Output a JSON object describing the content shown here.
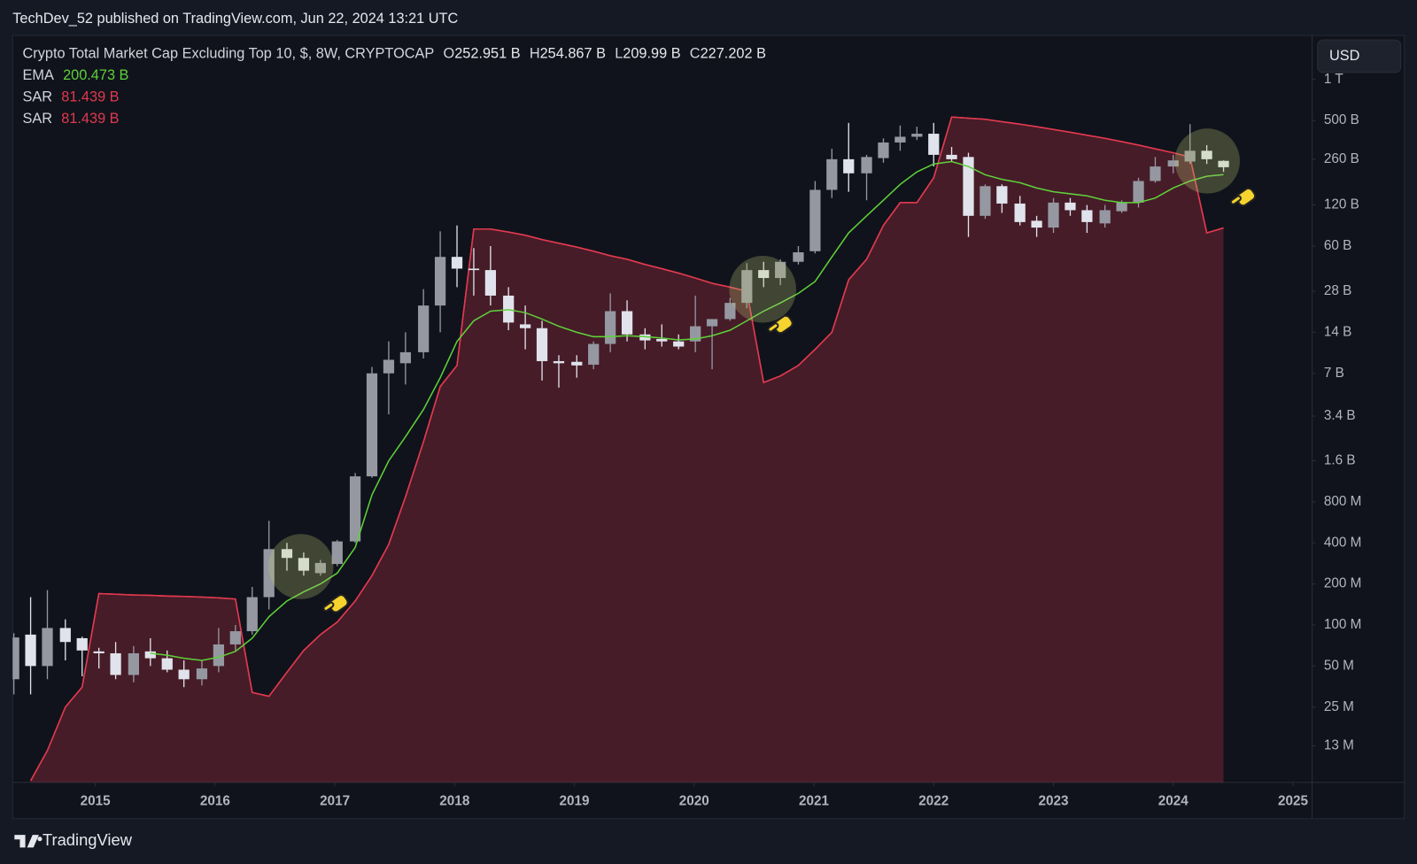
{
  "page": {
    "publisher": "TechDev_52 published on TradingView.com, Jun 22, 2024 13:21 UTC",
    "brand": "TradingView"
  },
  "chart_data": {
    "type": "candlestick",
    "title": "Crypto Total Market Cap Excluding Top 10, $, 8W, CRYPTOCAP",
    "ohlc_labels": [
      {
        "key": "O",
        "label": "252.951 B"
      },
      {
        "key": "H",
        "label": "254.867 B"
      },
      {
        "key": "L",
        "label": "209.99 B"
      },
      {
        "key": "C",
        "label": "227.202 B"
      }
    ],
    "currency": "USD",
    "yscale": "log",
    "xlim": [
      2014.31,
      2025.16
    ],
    "xticks": [
      2015,
      2016,
      2017,
      2018,
      2019,
      2020,
      2021,
      2022,
      2023,
      2024,
      2025
    ],
    "ylim": [
      7000000.0,
      2070000000000.0
    ],
    "yticks": [
      {
        "value": 1000000000000.0,
        "label": "1 T"
      },
      {
        "value": 500000000000.0,
        "label": "500 B"
      },
      {
        "value": 260000000000.0,
        "label": "260 B"
      },
      {
        "value": 120000000000.0,
        "label": "120 B"
      },
      {
        "value": 60000000000.0,
        "label": "60 B"
      },
      {
        "value": 28000000000.0,
        "label": "28 B"
      },
      {
        "value": 14000000000.0,
        "label": "14 B"
      },
      {
        "value": 7000000000.0,
        "label": "7 B"
      },
      {
        "value": 3400000000.0,
        "label": "3.4 B"
      },
      {
        "value": 1600000000.0,
        "label": "1.6 B"
      },
      {
        "value": 800000000.0,
        "label": "800 M"
      },
      {
        "value": 400000000.0,
        "label": "400 M"
      },
      {
        "value": 200000000.0,
        "label": "200 M"
      },
      {
        "value": 100000000.0,
        "label": "100 M"
      },
      {
        "value": 50000000.0,
        "label": "50 M"
      },
      {
        "value": 25000000.0,
        "label": "25 M"
      },
      {
        "value": 13000000.0,
        "label": "13 M"
      }
    ],
    "x": [
      2014.32,
      2014.46,
      2014.6,
      2014.75,
      2014.89,
      2015.03,
      2015.17,
      2015.32,
      2015.46,
      2015.6,
      2015.74,
      2015.89,
      2016.03,
      2016.17,
      2016.31,
      2016.45,
      2016.6,
      2016.74,
      2016.88,
      2017.02,
      2017.17,
      2017.31,
      2017.45,
      2017.59,
      2017.74,
      2017.88,
      2018.02,
      2018.16,
      2018.3,
      2018.45,
      2018.59,
      2018.73,
      2018.87,
      2019.02,
      2019.16,
      2019.3,
      2019.44,
      2019.59,
      2019.73,
      2019.87,
      2020.01,
      2020.15,
      2020.3,
      2020.44,
      2020.58,
      2020.72,
      2020.87,
      2021.01,
      2021.15,
      2021.29,
      2021.44,
      2021.58,
      2021.72,
      2021.86,
      2022.0,
      2022.15,
      2022.29,
      2022.43,
      2022.57,
      2022.72,
      2022.86,
      2023.0,
      2023.14,
      2023.28,
      2023.43,
      2023.57,
      2023.71,
      2023.85,
      2024.0,
      2024.14,
      2024.28,
      2024.42
    ],
    "candles": {
      "up_color": "#9598a1",
      "down_color": "#e0e3eb",
      "open": [
        40000000.0,
        85000000.0,
        50000000.0,
        95000000.0,
        80000000.0,
        64000000.0,
        62000000.0,
        43000000.0,
        64000000.0,
        57000000.0,
        47000000.0,
        40000000.0,
        50000000.0,
        72000000.0,
        90000000.0,
        160000000.0,
        360000000.0,
        310000000.0,
        240000000.0,
        280000000.0,
        410000000.0,
        1230000000.0,
        7000000000.0,
        8300000000.0,
        10000000000.0,
        22000000000.0,
        50000000000.0,
        41000000000.0,
        40000000000.0,
        26000000000.0,
        16000000000.0,
        15000000000.0,
        8600000000.0,
        8500000000.0,
        8100000000.0,
        11500000000.0,
        20000000000.0,
        13500000000.0,
        12500000000.0,
        12000000000.0,
        12000000000.0,
        15500000000.0,
        17500000000.0,
        23000000000.0,
        40000000000.0,
        35000000000.0,
        46000000000.0,
        55000000000.0,
        155000000000.0,
        260000000000.0,
        205000000000.0,
        265000000000.0,
        345000000000.0,
        380000000000.0,
        400000000000.0,
        280000000000.0,
        270000000000.0,
        100000000000.0,
        165000000000.0,
        123000000000.0,
        92000000000.0,
        82000000000.0,
        125000000000.0,
        110000000000.0,
        88000000000.0,
        108000000000.0,
        125000000000.0,
        180000000000.0,
        230000000000.0,
        250000000000.0,
        300000000000.0,
        252951000000.0
      ],
      "high": [
        87000000.0,
        160000000.0,
        180000000.0,
        110000000.0,
        82000000.0,
        68000000.0,
        75000000.0,
        70000000.0,
        80000000.0,
        65000000.0,
        55000000.0,
        55000000.0,
        95000000.0,
        100000000.0,
        190000000.0,
        580000000.0,
        400000000.0,
        340000000.0,
        300000000.0,
        420000000.0,
        1300000000.0,
        7800000000.0,
        12000000000.0,
        14000000000.0,
        29000000000.0,
        77000000000.0,
        85000000000.0,
        58000000000.0,
        60000000000.0,
        30000000000.0,
        22000000000.0,
        17000000000.0,
        9500000000.0,
        9500000000.0,
        12000000000.0,
        27000000000.0,
        24000000000.0,
        15000000000.0,
        16000000000.0,
        13500000000.0,
        26000000000.0,
        17500000000.0,
        25000000000.0,
        45000000000.0,
        46000000000.0,
        48000000000.0,
        60000000000.0,
        180000000000.0,
        310000000000.0,
        480000000000.0,
        280000000000.0,
        370000000000.0,
        460000000000.0,
        450000000000.0,
        480000000000.0,
        320000000000.0,
        290000000000.0,
        170000000000.0,
        170000000000.0,
        140000000000.0,
        100000000000.0,
        135000000000.0,
        135000000000.0,
        120000000000.0,
        120000000000.0,
        130000000000.0,
        190000000000.0,
        270000000000.0,
        280000000000.0,
        470000000000.0,
        330000000000.0,
        254867000000.0
      ],
      "low": [
        31000000.0,
        31000000.0,
        40000000.0,
        55000000.0,
        42000000.0,
        48000000.0,
        40000000.0,
        38000000.0,
        50000000.0,
        45000000.0,
        35000000.0,
        36000000.0,
        45000000.0,
        65000000.0,
        85000000.0,
        130000000.0,
        250000000.0,
        230000000.0,
        230000000.0,
        270000000.0,
        400000000.0,
        1200000000.0,
        3500000000.0,
        5800000000.0,
        9000000000.0,
        14000000000.0,
        30000000000.0,
        26000000000.0,
        22000000000.0,
        14500000000.0,
        10500000000.0,
        6200000000.0,
        5500000000.0,
        6500000000.0,
        7500000000.0,
        10000000000.0,
        12000000000.0,
        10500000000.0,
        11000000000.0,
        10500000000.0,
        10000000000.0,
        7500000000.0,
        17000000000.0,
        21000000000.0,
        30000000000.0,
        31000000000.0,
        44000000000.0,
        53000000000.0,
        135000000000.0,
        150000000000.0,
        130000000000.0,
        245000000000.0,
        300000000000.0,
        360000000000.0,
        230000000000.0,
        250000000000.0,
        70000000000.0,
        95000000000.0,
        105000000000.0,
        85000000000.0,
        70000000000.0,
        75000000000.0,
        100000000000.0,
        75000000000.0,
        82000000000.0,
        105000000000.0,
        115000000000.0,
        175000000000.0,
        205000000000.0,
        240000000000.0,
        240000000000.0,
        209990000000.0
      ],
      "close": [
        81000000.0,
        50000000.0,
        95000000.0,
        75000000.0,
        65000000.0,
        62000000.0,
        43000000.0,
        62000000.0,
        57000000.0,
        47000000.0,
        40000000.0,
        48000000.0,
        72000000.0,
        90000000.0,
        160000000.0,
        360000000.0,
        310000000.0,
        250000000.0,
        285000000.0,
        410000000.0,
        1230000000.0,
        7000000000.0,
        8800000000.0,
        10000000000.0,
        22000000000.0,
        50000000000.0,
        41000000000.0,
        40000000000.0,
        26000000000.0,
        16500000000.0,
        15000000000.0,
        8600000000.0,
        8300000000.0,
        8000000000.0,
        11500000000.0,
        20000000000.0,
        13500000000.0,
        12200000000.0,
        12000000000.0,
        11000000000.0,
        15500000000.0,
        17500000000.0,
        23000000000.0,
        40000000000.0,
        35000000000.0,
        46000000000.0,
        54000000000.0,
        155000000000.0,
        260000000000.0,
        205000000000.0,
        270000000000.0,
        345000000000.0,
        380000000000.0,
        400000000000.0,
        280000000000.0,
        260000000000.0,
        100000000000.0,
        165000000000.0,
        123000000000.0,
        90000000000.0,
        82000000000.0,
        125000000000.0,
        110000000000.0,
        90000000000.0,
        110000000000.0,
        125000000000.0,
        180000000000.0,
        230000000000.0,
        255000000000.0,
        300000000000.0,
        260000000000.0,
        227202000000.0
      ]
    },
    "series": [
      {
        "name": "EMA",
        "color": "#5fd13a",
        "style": "line",
        "last_label": "200.473 B",
        "values": [
          null,
          null,
          null,
          null,
          null,
          null,
          null,
          null,
          62000000.0,
          60000000.0,
          57000000.0,
          55000000.0,
          58000000.0,
          64000000.0,
          80000000.0,
          115000000.0,
          150000000.0,
          175000000.0,
          200000000.0,
          240000000.0,
          370000000.0,
          900000000.0,
          1600000000.0,
          2400000000.0,
          3800000000.0,
          6500000000.0,
          12000000000.0,
          17000000000.0,
          20000000000.0,
          20500000000.0,
          19500000000.0,
          17500000000.0,
          15500000000.0,
          14000000000.0,
          13000000000.0,
          13000000000.0,
          13200000000.0,
          13000000000.0,
          12700000000.0,
          12300000000.0,
          12500000000.0,
          13200000000.0,
          14500000000.0,
          17000000000.0,
          20000000000.0,
          23000000000.0,
          27000000000.0,
          33000000000.0,
          50000000000.0,
          75000000000.0,
          100000000000.0,
          130000000000.0,
          170000000000.0,
          210000000000.0,
          240000000000.0,
          250000000000.0,
          230000000000.0,
          200000000000.0,
          185000000000.0,
          175000000000.0,
          160000000000.0,
          150000000000.0,
          145000000000.0,
          140000000000.0,
          130000000000.0,
          125000000000.0,
          125000000000.0,
          135000000000.0,
          160000000000.0,
          180000000000.0,
          195000000000.0,
          200473000000.0
        ]
      },
      {
        "name": "SAR",
        "color": "#e0394f",
        "style": "area",
        "last_label": "81.439 B",
        "values": [
          null,
          7200000.0,
          12000000.0,
          25000000.0,
          35000000.0,
          170000000.0,
          168000000.0,
          166000000.0,
          165000000.0,
          163000000.0,
          162000000.0,
          160000000.0,
          158000000.0,
          155000000.0,
          32000000.0,
          30000000.0,
          45000000.0,
          65000000.0,
          85000000.0,
          105000000.0,
          150000000.0,
          230000000.0,
          390000000.0,
          870000000.0,
          2200000000.0,
          5600000000.0,
          8000000000.0,
          80000000000.0,
          80000000000.0,
          76000000000.0,
          72000000000.0,
          67000000000.0,
          63000000000.0,
          59000000000.0,
          55000000000.0,
          51000000000.0,
          48000000000.0,
          44000000000.0,
          41000000000.0,
          38000000000.0,
          35000000000.0,
          32000000000.0,
          30000000000.0,
          28000000000.0,
          6000000000.0,
          6700000000.0,
          8000000000.0,
          10500000000.0,
          14000000000.0,
          34000000000.0,
          48000000000.0,
          85000000000.0,
          125000000000.0,
          125000000000.0,
          190000000000.0,
          530000000000.0,
          520000000000.0,
          510000000000.0,
          490000000000.0,
          470000000000.0,
          450000000000.0,
          430000000000.0,
          410000000000.0,
          390000000000.0,
          370000000000.0,
          350000000000.0,
          330000000000.0,
          310000000000.0,
          290000000000.0,
          270000000000.0,
          75000000000.0,
          81439000000.0
        ]
      },
      {
        "name": "SAR",
        "color": "#e0394f",
        "style": "area",
        "last_label": "81.439 B",
        "values": [
          null,
          7200000.0,
          12000000.0,
          25000000.0,
          35000000.0,
          170000000.0,
          168000000.0,
          166000000.0,
          165000000.0,
          163000000.0,
          162000000.0,
          160000000.0,
          158000000.0,
          155000000.0,
          32000000.0,
          30000000.0,
          45000000.0,
          65000000.0,
          85000000.0,
          105000000.0,
          150000000.0,
          230000000.0,
          390000000.0,
          870000000.0,
          2200000000.0,
          5600000000.0,
          8000000000.0,
          80000000000.0,
          80000000000.0,
          76000000000.0,
          72000000000.0,
          67000000000.0,
          63000000000.0,
          59000000000.0,
          55000000000.0,
          51000000000.0,
          48000000000.0,
          44000000000.0,
          41000000000.0,
          38000000000.0,
          35000000000.0,
          32000000000.0,
          30000000000.0,
          28000000000.0,
          6000000000.0,
          6700000000.0,
          8000000000.0,
          10500000000.0,
          14000000000.0,
          34000000000.0,
          48000000000.0,
          85000000000.0,
          125000000000.0,
          125000000000.0,
          190000000000.0,
          530000000000.0,
          520000000000.0,
          510000000000.0,
          490000000000.0,
          470000000000.0,
          450000000000.0,
          430000000000.0,
          410000000000.0,
          390000000000.0,
          370000000000.0,
          350000000000.0,
          330000000000.0,
          310000000000.0,
          290000000000.0,
          270000000000.0,
          75000000000.0,
          81439000000.0
        ]
      }
    ]
  }
}
